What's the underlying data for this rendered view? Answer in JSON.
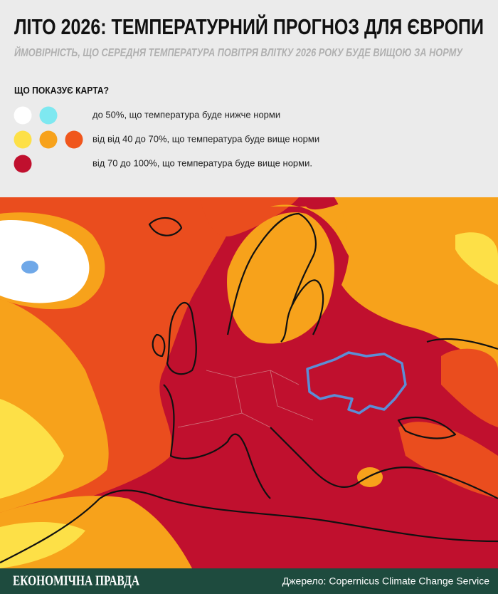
{
  "header": {
    "title": "ЛІТО 2026: ТЕМПЕРАТУРНИЙ ПРОГНОЗ ДЛЯ ЄВРОПИ",
    "subtitle": "ЙМОВІРНІСТЬ, ЩО СЕРЕДНЯ ТЕМПЕРАТУРА ПОВІТРЯ ВЛІТКУ 2026 РОКУ БУДЕ ВИЩОЮ ЗА НОРМУ"
  },
  "legend": {
    "title": "ЩО ПОКАЗУЄ КАРТА?",
    "items": [
      {
        "colors": [
          "#ffffff",
          "#7ee8f0"
        ],
        "text": "до 50%, що температура буде нижче норми"
      },
      {
        "colors": [
          "#fde047",
          "#f7a21b",
          "#f0561c"
        ],
        "text": "від від 40 до 70%, що температура буде вище норми"
      },
      {
        "colors": [
          "#c0102e"
        ],
        "text": "від 70 до 100%, що температура буде вище норми."
      }
    ]
  },
  "footer": {
    "brand": "ЕКОНОМІЧНА ПРАВДА",
    "source": "Джерело: Copernicus Climate Change Service"
  }
}
